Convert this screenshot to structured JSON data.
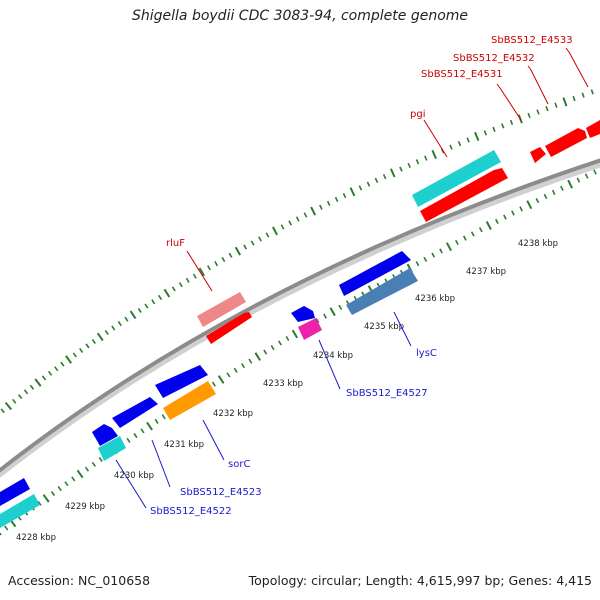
{
  "title": "Shigella boydii CDC 3083-94, complete genome",
  "footer": {
    "accession": "Accession: NC_010658",
    "topology": "Topology: circular; Length: 4,615,997 bp; Genes: 4,415"
  },
  "colors": {
    "backbone": "#909090",
    "tick": "#2a7d2a",
    "label_red": "#cc0000",
    "label_blue": "#1a1acc",
    "red": "#ff0000",
    "blue": "#0000ee",
    "cyan": "#1ecfcf",
    "pink": "#ee8888",
    "magenta": "#ee22aa",
    "orange": "#ff9900",
    "steel": "#4a7fb5"
  },
  "scale_labels": [
    "4228 kbp",
    "4229 kbp",
    "4230 kbp",
    "4231 kbp",
    "4232 kbp",
    "4233 kbp",
    "4234 kbp",
    "4235 kbp",
    "4236 kbp",
    "4237 kbp",
    "4238 kbp"
  ],
  "gene_labels": {
    "rluF": "rluF",
    "pgi": "pgi",
    "e4531": "SbBS512_E4531",
    "e4532": "SbBS512_E4532",
    "e4533": "SbBS512_E4533",
    "lysC": "lysC",
    "e4527": "SbBS512_E4527",
    "sorC": "sorC",
    "e4523": "SbBS512_E4523",
    "e4522": "SbBS512_E4522"
  }
}
